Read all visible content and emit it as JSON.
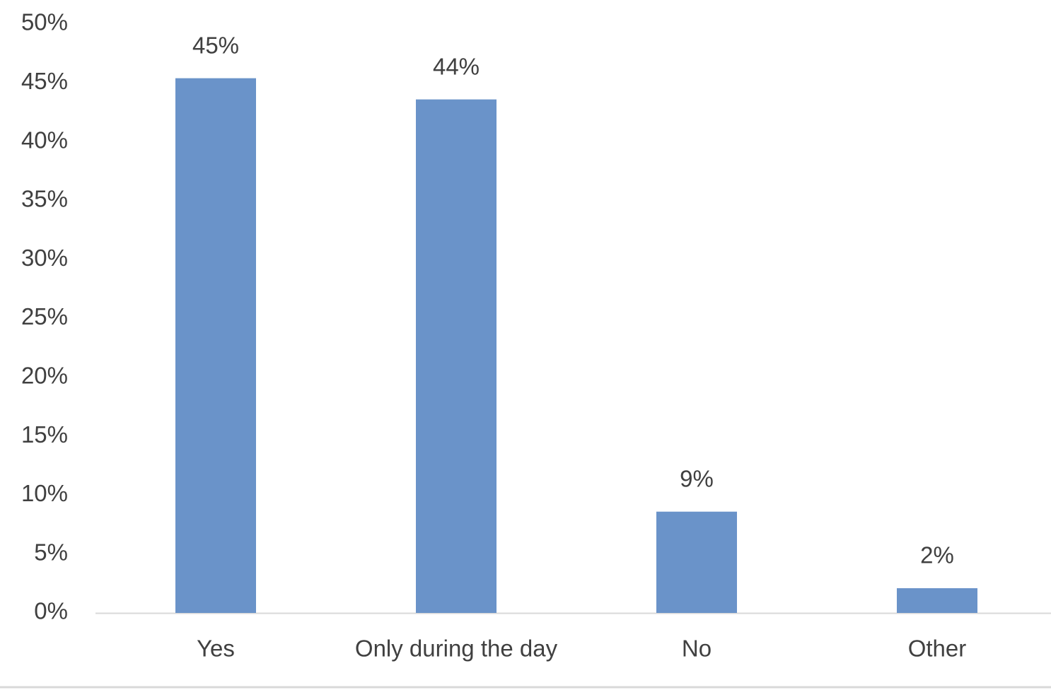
{
  "chart_data": {
    "type": "bar",
    "categories": [
      "Yes",
      "Only during the day",
      "No",
      "Other"
    ],
    "values": [
      45.4,
      43.6,
      8.6,
      2.1
    ],
    "value_labels": [
      "45%",
      "44%",
      "9%",
      "2%"
    ],
    "color": "#6a93c9",
    "ylim": [
      0,
      50
    ],
    "yticks": [
      {
        "value": 0,
        "label": "0%"
      },
      {
        "value": 5,
        "label": "5%"
      },
      {
        "value": 10,
        "label": "10%"
      },
      {
        "value": 15,
        "label": "15%"
      },
      {
        "value": 20,
        "label": "20%"
      },
      {
        "value": 25,
        "label": "25%"
      },
      {
        "value": 30,
        "label": "30%"
      },
      {
        "value": 35,
        "label": "35%"
      },
      {
        "value": 40,
        "label": "40%"
      },
      {
        "value": 45,
        "label": "45%"
      },
      {
        "value": 50,
        "label": "50%"
      }
    ],
    "grid": false
  }
}
